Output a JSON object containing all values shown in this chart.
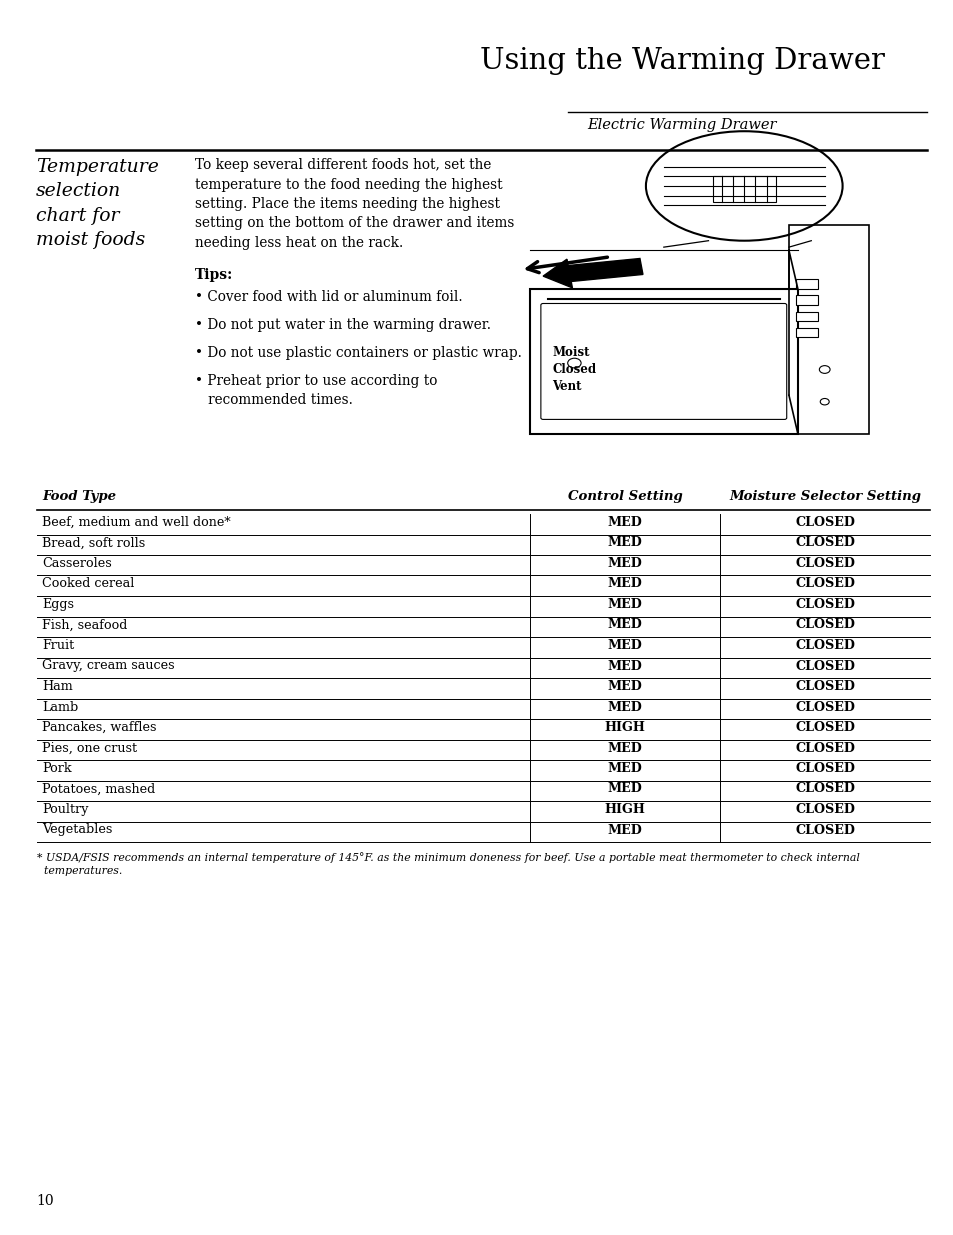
{
  "title": "Using the Warming Drawer",
  "subtitle": "Electric Warming Drawer",
  "section_title": "Temperature\nselection\nchart for\nmoist foods",
  "intro_text": "To keep several different foods hot, set the\ntemperature to the food needing the highest\nsetting. Place the items needing the highest\nsetting on the bottom of the drawer and items\nneeding less heat on the rack.",
  "tips_header": "Tips:",
  "tips": [
    "Cover food with lid or aluminum foil.",
    "Do not put water in the warming drawer.",
    "Do not use plastic containers or plastic wrap.",
    "Preheat prior to use according to\n   recommended times."
  ],
  "table_headers": [
    "Food Type",
    "Control Setting",
    "Moisture Selector Setting"
  ],
  "table_rows": [
    [
      "Beef, medium and well done*",
      "MED",
      "CLOSED"
    ],
    [
      "Bread, soft rolls",
      "MED",
      "CLOSED"
    ],
    [
      "Casseroles",
      "MED",
      "CLOSED"
    ],
    [
      "Cooked cereal",
      "MED",
      "CLOSED"
    ],
    [
      "Eggs",
      "MED",
      "CLOSED"
    ],
    [
      "Fish, seafood",
      "MED",
      "CLOSED"
    ],
    [
      "Fruit",
      "MED",
      "CLOSED"
    ],
    [
      "Gravy, cream sauces",
      "MED",
      "CLOSED"
    ],
    [
      "Ham",
      "MED",
      "CLOSED"
    ],
    [
      "Lamb",
      "MED",
      "CLOSED"
    ],
    [
      "Pancakes, waffles",
      "HIGH",
      "CLOSED"
    ],
    [
      "Pies, one crust",
      "MED",
      "CLOSED"
    ],
    [
      "Pork",
      "MED",
      "CLOSED"
    ],
    [
      "Potatoes, mashed",
      "MED",
      "CLOSED"
    ],
    [
      "Poultry",
      "HIGH",
      "CLOSED"
    ],
    [
      "Vegetables",
      "MED",
      "CLOSED"
    ]
  ],
  "footnote": "* USDA/FSIS recommends an internal temperature of 145°F. as the minimum doneness for beef. Use a portable meat thermometer to check internal\n  temperatures.",
  "page_number": "10",
  "bg_color": "#ffffff",
  "text_color": "#000000"
}
